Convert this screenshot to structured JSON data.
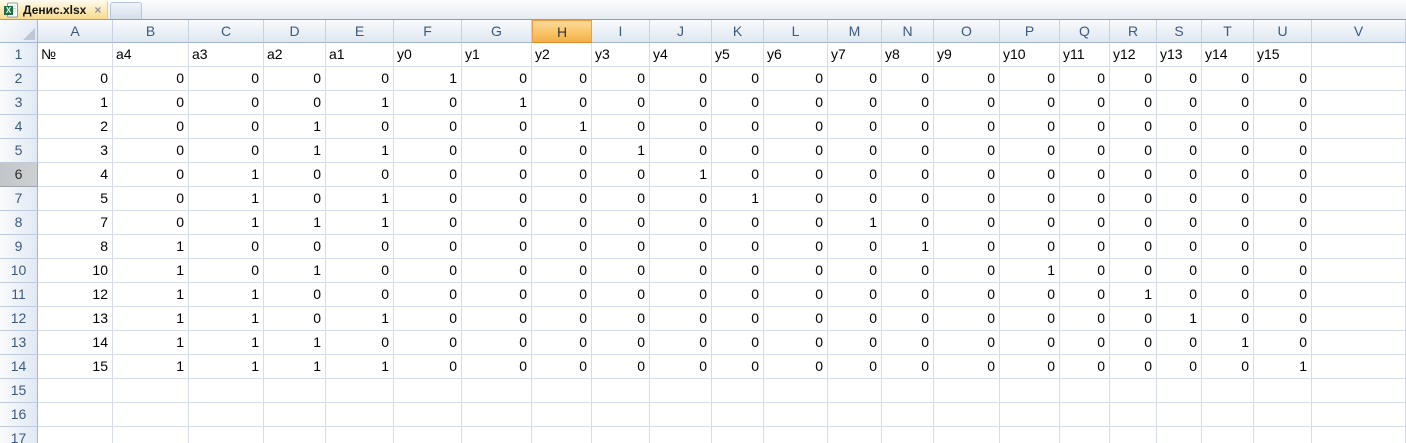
{
  "tab": {
    "label": "Денис.xlsx",
    "close_glyph": "×"
  },
  "sheet": {
    "columns": [
      "A",
      "B",
      "C",
      "D",
      "E",
      "F",
      "G",
      "H",
      "I",
      "J",
      "K",
      "L",
      "M",
      "N",
      "O",
      "P",
      "Q",
      "R",
      "S",
      "T",
      "U",
      "V"
    ],
    "selected_column": "H",
    "gray_row": "6",
    "visible_row_count": 17,
    "rows": [
      {
        "num": "1",
        "cells": [
          "№",
          "a4",
          "a3",
          "a2",
          "a1",
          "y0",
          "y1",
          "y2",
          "y3",
          "y4",
          "y5",
          "y6",
          "y7",
          "y8",
          "y9",
          "y10",
          "y11",
          "y12",
          "y13",
          "y14",
          "y15",
          ""
        ]
      },
      {
        "num": "2",
        "cells": [
          "0",
          "0",
          "0",
          "0",
          "0",
          "1",
          "0",
          "0",
          "0",
          "0",
          "0",
          "0",
          "0",
          "0",
          "0",
          "0",
          "0",
          "0",
          "0",
          "0",
          "0",
          ""
        ]
      },
      {
        "num": "3",
        "cells": [
          "1",
          "0",
          "0",
          "0",
          "1",
          "0",
          "1",
          "0",
          "0",
          "0",
          "0",
          "0",
          "0",
          "0",
          "0",
          "0",
          "0",
          "0",
          "0",
          "0",
          "0",
          ""
        ]
      },
      {
        "num": "4",
        "cells": [
          "2",
          "0",
          "0",
          "1",
          "0",
          "0",
          "0",
          "1",
          "0",
          "0",
          "0",
          "0",
          "0",
          "0",
          "0",
          "0",
          "0",
          "0",
          "0",
          "0",
          "0",
          ""
        ]
      },
      {
        "num": "5",
        "cells": [
          "3",
          "0",
          "0",
          "1",
          "1",
          "0",
          "0",
          "0",
          "1",
          "0",
          "0",
          "0",
          "0",
          "0",
          "0",
          "0",
          "0",
          "0",
          "0",
          "0",
          "0",
          ""
        ]
      },
      {
        "num": "6",
        "cells": [
          "4",
          "0",
          "1",
          "0",
          "0",
          "0",
          "0",
          "0",
          "0",
          "1",
          "0",
          "0",
          "0",
          "0",
          "0",
          "0",
          "0",
          "0",
          "0",
          "0",
          "0",
          ""
        ]
      },
      {
        "num": "7",
        "cells": [
          "5",
          "0",
          "1",
          "0",
          "1",
          "0",
          "0",
          "0",
          "0",
          "0",
          "1",
          "0",
          "0",
          "0",
          "0",
          "0",
          "0",
          "0",
          "0",
          "0",
          "0",
          ""
        ]
      },
      {
        "num": "8",
        "cells": [
          "7",
          "0",
          "1",
          "1",
          "1",
          "0",
          "0",
          "0",
          "0",
          "0",
          "0",
          "0",
          "1",
          "0",
          "0",
          "0",
          "0",
          "0",
          "0",
          "0",
          "0",
          ""
        ]
      },
      {
        "num": "9",
        "cells": [
          "8",
          "1",
          "0",
          "0",
          "0",
          "0",
          "0",
          "0",
          "0",
          "0",
          "0",
          "0",
          "0",
          "1",
          "0",
          "0",
          "0",
          "0",
          "0",
          "0",
          "0",
          ""
        ]
      },
      {
        "num": "10",
        "cells": [
          "10",
          "1",
          "0",
          "1",
          "0",
          "0",
          "0",
          "0",
          "0",
          "0",
          "0",
          "0",
          "0",
          "0",
          "0",
          "1",
          "0",
          "0",
          "0",
          "0",
          "0",
          ""
        ]
      },
      {
        "num": "11",
        "cells": [
          "12",
          "1",
          "1",
          "0",
          "0",
          "0",
          "0",
          "0",
          "0",
          "0",
          "0",
          "0",
          "0",
          "0",
          "0",
          "0",
          "0",
          "1",
          "0",
          "0",
          "0",
          ""
        ]
      },
      {
        "num": "12",
        "cells": [
          "13",
          "1",
          "1",
          "0",
          "1",
          "0",
          "0",
          "0",
          "0",
          "0",
          "0",
          "0",
          "0",
          "0",
          "0",
          "0",
          "0",
          "0",
          "1",
          "0",
          "0",
          ""
        ]
      },
      {
        "num": "13",
        "cells": [
          "14",
          "1",
          "1",
          "1",
          "0",
          "0",
          "0",
          "0",
          "0",
          "0",
          "0",
          "0",
          "0",
          "0",
          "0",
          "0",
          "0",
          "0",
          "0",
          "1",
          "0",
          ""
        ]
      },
      {
        "num": "14",
        "cells": [
          "15",
          "1",
          "1",
          "1",
          "1",
          "0",
          "0",
          "0",
          "0",
          "0",
          "0",
          "0",
          "0",
          "0",
          "0",
          "0",
          "0",
          "0",
          "0",
          "0",
          "1",
          ""
        ]
      },
      {
        "num": "15",
        "cells": []
      },
      {
        "num": "16",
        "cells": []
      },
      {
        "num": "17",
        "cells": []
      }
    ]
  },
  "colors": {
    "selected_header_top": "#FCDB9C",
    "selected_header_bottom": "#F3AF47",
    "selected_header_border": "#EF9B3F",
    "tab_gradient_top": "#FFFBEF",
    "tab_gradient_bottom": "#F7D98E",
    "gridline": "#D5DDE9",
    "header_text": "#3D5A7E"
  }
}
